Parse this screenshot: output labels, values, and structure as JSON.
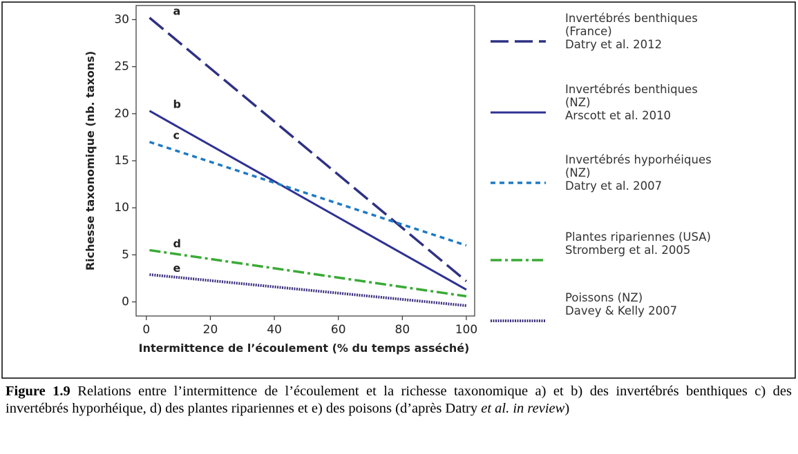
{
  "chart_data": {
    "type": "line",
    "xlabel": "Intermittence de l’écoulement (% du temps asséché)",
    "ylabel": "Richesse taxonomique (nb. taxons)",
    "xlim": [
      -3.2,
      102.6
    ],
    "xticks": [
      0,
      20,
      40,
      60,
      80,
      100
    ],
    "ylim": [
      -1.5,
      31.5
    ],
    "yticks": [
      0,
      5,
      10,
      15,
      20,
      25,
      30
    ],
    "x": [
      1,
      100
    ],
    "series": [
      {
        "name": "Invertébrés benthiques (France)",
        "reference": "Datry et al. 2012",
        "label": "a",
        "color": "#2e3183",
        "dash": "long",
        "values": [
          30.2,
          2.2
        ]
      },
      {
        "name": "Invertébrés benthiques (NZ)",
        "reference": "Arscott et al. 2010",
        "label": "b",
        "color": "#2e3192",
        "dash": "solid",
        "values": [
          20.3,
          1.3
        ]
      },
      {
        "name": "Invertébrés hyporhéiques (NZ)",
        "reference": "Datry et al. 2007",
        "label": "c",
        "color": "#1f7ac4",
        "dash": "dotted",
        "values": [
          17,
          6
        ]
      },
      {
        "name": "Plantes ripariennes (USA)",
        "reference": "Stromberg et al. 2005",
        "label": "d",
        "color": "#3aaa35",
        "dash": "dashdot",
        "values": [
          5.5,
          0.6
        ]
      },
      {
        "name": "Poissons (NZ)",
        "reference": "Davey & Kelly 2007",
        "label": "e",
        "color": "#3b2f7d",
        "dash": "densedot",
        "values": [
          2.9,
          -0.4
        ]
      }
    ]
  },
  "caption": {
    "label": "Figure 1.9",
    "text": "Relations entre l’intermittence de l’écoulement et la richesse taxonomique a) et b) des invertébrés benthiques c) des invertébrés hyporhéique, d) des plantes ripariennes et e) des poisons (d’après Datry",
    "italic": "et al. in review",
    "end": ")"
  }
}
